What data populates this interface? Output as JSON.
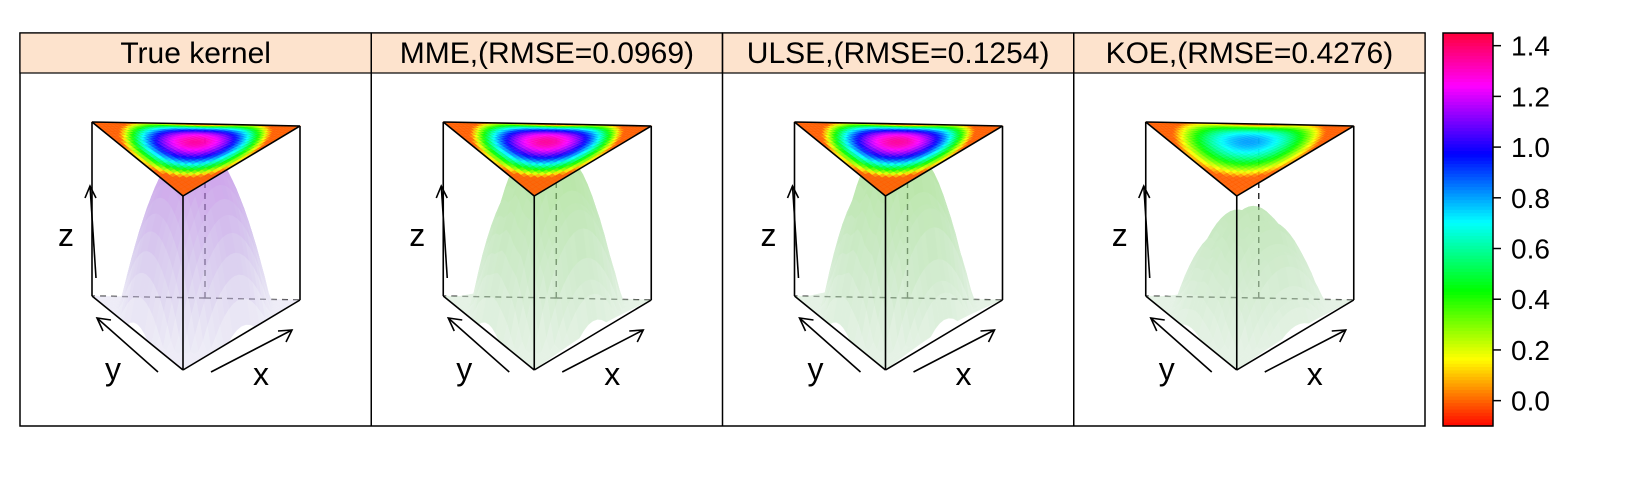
{
  "chart_data": {
    "type": "surface3d",
    "panels": [
      {
        "strip_label": "True kernel",
        "kernel": "true",
        "peak": 1.0,
        "peak_lo": 1.0,
        "peak_hi": 1.0,
        "ripple": 0.0,
        "top_palette_scale": 1.0,
        "axis_labels": {
          "x": "x",
          "y": "y",
          "z": "z"
        }
      },
      {
        "strip_label": "MME,(RMSE=0.0969)",
        "kernel": "MME",
        "rmse": 0.0969,
        "peak": 1.0,
        "peak_lo": 0.9,
        "peak_hi": 1.1,
        "ripple": 0.04,
        "top_palette_scale": 1.0,
        "axis_labels": {
          "x": "x",
          "y": "y",
          "z": "z"
        }
      },
      {
        "strip_label": "ULSE,(RMSE=0.1254)",
        "kernel": "ULSE",
        "rmse": 0.1254,
        "peak": 1.0,
        "peak_lo": 0.9,
        "peak_hi": 1.1,
        "ripple": 0.05,
        "top_palette_scale": 1.0,
        "axis_labels": {
          "x": "x",
          "y": "y",
          "z": "z"
        }
      },
      {
        "strip_label": "KOE,(RMSE=0.4276)",
        "kernel": "KOE",
        "rmse": 0.4276,
        "peak": 0.6,
        "peak_lo": 0.55,
        "peak_hi": 0.65,
        "ripple": 0.03,
        "top_palette_scale": 0.6,
        "axis_labels": {
          "x": "x",
          "y": "y",
          "z": "z"
        }
      }
    ],
    "colorkey": {
      "range": [
        -0.1,
        1.45
      ],
      "ticks": [
        0.0,
        0.2,
        0.4,
        0.6,
        0.8,
        1.0,
        1.2,
        1.4
      ],
      "tick_labels": [
        "0.0",
        "0.2",
        "0.4",
        "0.6",
        "0.8",
        "1.0",
        "1.2",
        "1.4"
      ],
      "palette": "rainbow (red-orange-yellow-green-cyan-blue-magenta-red)"
    },
    "strip_color": "#fde3cd",
    "zlim": [
      0,
      1.0
    ],
    "grid": false
  }
}
